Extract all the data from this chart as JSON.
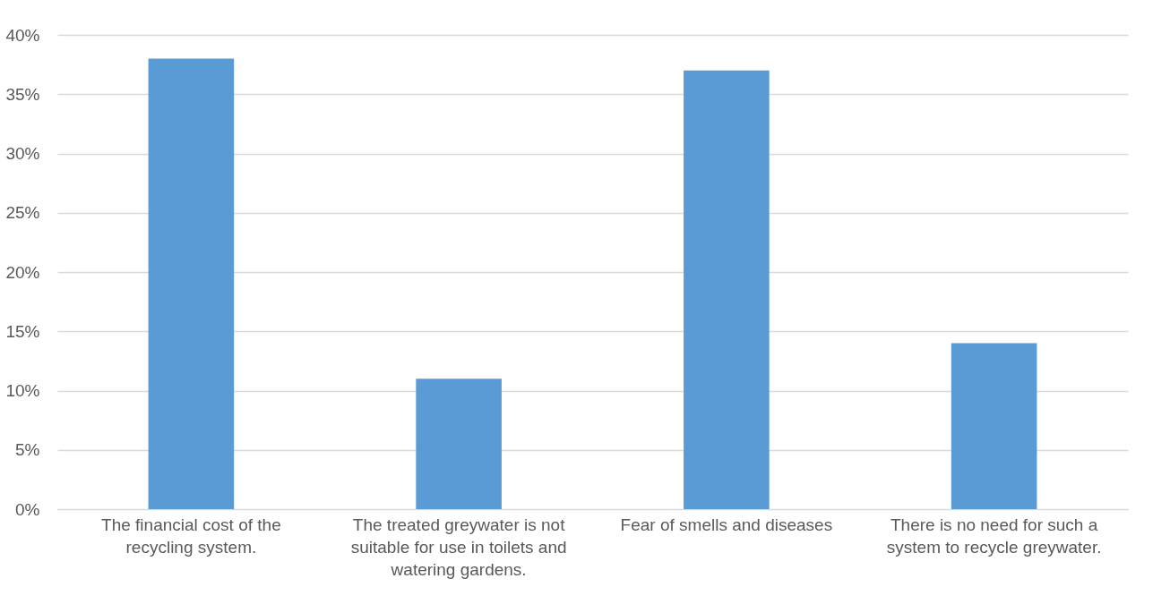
{
  "chart_data": {
    "type": "bar",
    "categories": [
      "The financial cost of the recycling system.",
      "The treated greywater is not suitable for use in toilets and watering gardens.",
      "Fear of smells and diseases",
      "There is no need for such a system to recycle greywater."
    ],
    "values": [
      38,
      11,
      37,
      14
    ],
    "color": "#5b9bd5",
    "ylim": [
      0,
      40
    ],
    "yticks": [
      {
        "value": 0,
        "label": "0%"
      },
      {
        "value": 5,
        "label": "5%"
      },
      {
        "value": 10,
        "label": "10%"
      },
      {
        "value": 15,
        "label": "15%"
      },
      {
        "value": 20,
        "label": "20%"
      },
      {
        "value": 25,
        "label": "25%"
      },
      {
        "value": 30,
        "label": "30%"
      },
      {
        "value": 35,
        "label": "35%"
      },
      {
        "value": 40,
        "label": "40%"
      }
    ],
    "grid": "y"
  }
}
